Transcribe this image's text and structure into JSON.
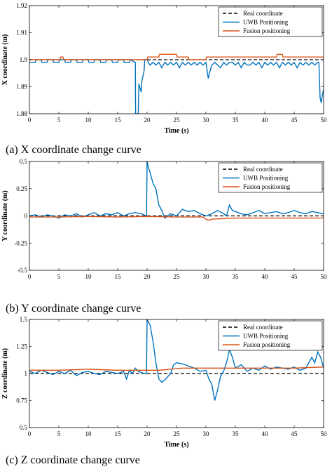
{
  "chart_data": [
    {
      "type": "line",
      "caption": "(a) X coordinate change curve",
      "xlabel": "Time (s)",
      "ylabel": "X coordinate (m)",
      "xlim": [
        0,
        50
      ],
      "ylim": [
        1.88,
        1.92
      ],
      "xticks": [
        "0",
        "5",
        "10",
        "15",
        "20",
        "25",
        "30",
        "35",
        "40",
        "45",
        "50"
      ],
      "yticks": [
        "1.88",
        "1.89",
        "1.9",
        "1.91",
        "1.92"
      ],
      "legend_position": "top-right",
      "series": [
        {
          "name": "Real coordinate",
          "color": "#000000",
          "dash": true,
          "x": [
            0,
            50
          ],
          "y": [
            1.9,
            1.9
          ]
        },
        {
          "name": "UWB Positioning",
          "color": "#0072BD",
          "x": [
            0,
            1,
            1.1,
            2,
            2.1,
            3,
            3.1,
            4,
            4.1,
            5,
            5.1,
            6,
            6.1,
            7,
            7.1,
            8,
            8.1,
            9,
            9.1,
            10,
            10.1,
            11,
            11.1,
            12,
            12.1,
            13,
            13.1,
            14,
            14.1,
            15,
            15.1,
            16,
            16.1,
            17,
            17.1,
            18,
            18.05,
            18.1,
            18.5,
            18.6,
            19.0,
            19.1,
            19.5,
            19.6,
            20,
            20.2,
            20.5,
            21,
            21.5,
            22,
            22.5,
            23,
            23.5,
            24,
            24.5,
            25,
            25.5,
            26,
            26.5,
            27,
            27.5,
            28,
            28.5,
            29,
            29.5,
            30,
            30.2,
            30.4,
            30.6,
            31,
            31.5,
            32,
            32.5,
            33,
            33.5,
            34,
            34.5,
            35,
            35.5,
            36,
            36.5,
            37,
            37.5,
            38,
            38.5,
            39,
            39.5,
            40,
            40.5,
            41,
            41.5,
            42,
            42.5,
            43,
            43.5,
            44,
            44.5,
            45,
            45.5,
            46,
            46.5,
            47,
            47.5,
            48,
            48.5,
            49,
            49.2,
            49.4,
            49.6,
            49.8,
            50
          ],
          "y": [
            1.899,
            1.899,
            1.9,
            1.9,
            1.899,
            1.899,
            1.9,
            1.9,
            1.899,
            1.899,
            1.9,
            1.9,
            1.899,
            1.899,
            1.9,
            1.9,
            1.899,
            1.899,
            1.9,
            1.9,
            1.899,
            1.899,
            1.9,
            1.9,
            1.899,
            1.899,
            1.9,
            1.9,
            1.899,
            1.899,
            1.9,
            1.9,
            1.899,
            1.899,
            1.9,
            1.899,
            1.88,
            1.88,
            1.88,
            1.891,
            1.888,
            1.892,
            1.896,
            1.9,
            1.9,
            1.899,
            1.898,
            1.899,
            1.898,
            1.899,
            1.897,
            1.899,
            1.898,
            1.899,
            1.898,
            1.899,
            1.897,
            1.899,
            1.898,
            1.899,
            1.898,
            1.899,
            1.898,
            1.899,
            1.898,
            1.899,
            1.896,
            1.893,
            1.895,
            1.898,
            1.899,
            1.898,
            1.897,
            1.899,
            1.898,
            1.899,
            1.899,
            1.898,
            1.899,
            1.897,
            1.899,
            1.898,
            1.898,
            1.899,
            1.898,
            1.899,
            1.897,
            1.899,
            1.898,
            1.899,
            1.898,
            1.899,
            1.897,
            1.899,
            1.898,
            1.899,
            1.898,
            1.899,
            1.897,
            1.899,
            1.898,
            1.899,
            1.898,
            1.899,
            1.898,
            1.899,
            1.899,
            1.886,
            1.884,
            1.887,
            1.889
          ]
        },
        {
          "name": "Fusion positioning",
          "color": "#D95319",
          "x": [
            0,
            5.2,
            5.3,
            5.7,
            5.8,
            20,
            20.1,
            22,
            22.1,
            25,
            25.1,
            27,
            27.1,
            30,
            30.1,
            42,
            42.1,
            43,
            43.1,
            50
          ],
          "y": [
            1.9,
            1.9,
            1.901,
            1.901,
            1.9,
            1.9,
            1.901,
            1.901,
            1.902,
            1.902,
            1.901,
            1.901,
            1.9,
            1.9,
            1.901,
            1.901,
            1.902,
            1.902,
            1.901,
            1.901
          ]
        }
      ]
    },
    {
      "type": "line",
      "caption": "(b) Y coordinate change curve",
      "xlabel": "",
      "ylabel": "Y coordinate (m)",
      "xlim": [
        0,
        50
      ],
      "ylim": [
        -0.5,
        0.5
      ],
      "xticks": [
        "0",
        "5",
        "10",
        "15",
        "20",
        "25",
        "30",
        "35",
        "40",
        "45",
        "50"
      ],
      "yticks": [
        "-0.5",
        "-0.25",
        "0",
        "0.25",
        "0.5"
      ],
      "legend_position": "top-right",
      "series": [
        {
          "name": "Real coordinate",
          "color": "#000000",
          "dash": true,
          "x": [
            0,
            50
          ],
          "y": [
            0,
            0
          ]
        },
        {
          "name": "UWB Positioning",
          "color": "#0072BD",
          "x": [
            0,
            1,
            2,
            3,
            4,
            5,
            6,
            7,
            8,
            9,
            10,
            11,
            12,
            13,
            14,
            15,
            16,
            17,
            18,
            19,
            19.9,
            20,
            20.2,
            20.5,
            21,
            21.5,
            22,
            22.5,
            23,
            23.5,
            24,
            25,
            26,
            27,
            28,
            29,
            30,
            31,
            32,
            33,
            33.5,
            34,
            34.5,
            35,
            36,
            37,
            38,
            39,
            40,
            41,
            42,
            43,
            44,
            45,
            46,
            47,
            48,
            49,
            50
          ],
          "y": [
            0,
            0.01,
            -0.01,
            0.01,
            0.0,
            -0.02,
            0.01,
            0.0,
            0.02,
            -0.01,
            0.01,
            0.03,
            0.0,
            0.02,
            0.01,
            0.03,
            0.0,
            0.02,
            0.03,
            0.02,
            0.0,
            0.5,
            0.45,
            0.4,
            0.3,
            0.25,
            0.1,
            0.05,
            -0.02,
            0.0,
            0.02,
            0.0,
            0.06,
            0.04,
            0.05,
            0.02,
            0.0,
            0.02,
            0.05,
            0.02,
            0.0,
            0.1,
            0.05,
            0.04,
            0.02,
            0.01,
            0.03,
            0.05,
            0.02,
            0.03,
            0.04,
            0.02,
            0.03,
            0.05,
            0.03,
            0.02,
            0.04,
            0.03,
            0.02
          ]
        },
        {
          "name": "Fusion positioning",
          "color": "#D95319",
          "x": [
            0,
            5,
            10,
            15,
            20,
            25,
            29.5,
            30,
            30.5,
            31,
            35,
            40,
            45,
            50
          ],
          "y": [
            -0.01,
            -0.01,
            -0.005,
            -0.01,
            -0.005,
            -0.01,
            -0.01,
            -0.03,
            -0.04,
            -0.03,
            -0.02,
            -0.02,
            -0.02,
            -0.02
          ]
        }
      ]
    },
    {
      "type": "line",
      "caption": "(c) Z coordinate change curve",
      "xlabel": "Time (s)",
      "ylabel": "Z coordinate (m)",
      "xlim": [
        0,
        50
      ],
      "ylim": [
        0.5,
        1.5
      ],
      "xticks": [
        "0",
        "5",
        "10",
        "15",
        "20",
        "25",
        "30",
        "35",
        "40",
        "45",
        "50"
      ],
      "yticks": [
        "0.5",
        "0.75",
        "1",
        "1.25",
        "1.5"
      ],
      "legend_position": "top-right",
      "series": [
        {
          "name": "Real coordinate",
          "color": "#000000",
          "dash": true,
          "x": [
            0,
            50
          ],
          "y": [
            1,
            1
          ]
        },
        {
          "name": "UWB Positioning",
          "color": "#0072BD",
          "x": [
            0,
            1,
            2,
            3,
            4,
            5,
            6,
            7,
            8,
            9,
            10,
            11,
            12,
            13,
            14,
            15,
            16,
            16.5,
            17,
            17.5,
            18,
            18.5,
            19,
            19.5,
            19.9,
            20,
            20.5,
            21,
            21.5,
            22,
            22.5,
            23,
            23.5,
            24,
            24.5,
            25,
            26,
            27,
            28,
            29,
            30,
            30.5,
            31,
            31.5,
            32,
            32.5,
            33,
            33.5,
            34,
            34.5,
            35,
            36,
            37,
            38,
            39,
            40,
            41,
            42,
            43,
            44,
            45,
            46,
            47,
            48,
            48.5,
            49,
            49.5,
            50
          ],
          "y": [
            1.02,
            1.0,
            1.03,
            1.01,
            0.99,
            1.02,
            1.0,
            1.03,
            0.98,
            1.01,
            1.02,
            1.0,
            0.99,
            1.02,
            1.01,
            1.0,
            1.02,
            0.95,
            1.03,
            1.0,
            1.05,
            1.02,
            1.01,
            1.0,
            1.0,
            1.5,
            1.45,
            1.3,
            1.1,
            0.95,
            0.92,
            0.94,
            0.97,
            1.0,
            1.08,
            1.1,
            1.09,
            1.07,
            1.05,
            1.02,
            1.03,
            0.95,
            0.9,
            0.75,
            0.85,
            0.98,
            1.02,
            1.1,
            1.22,
            1.15,
            1.05,
            1.08,
            1.02,
            1.05,
            1.03,
            1.07,
            1.04,
            1.06,
            1.05,
            1.04,
            1.06,
            1.03,
            1.05,
            1.15,
            1.1,
            1.2,
            1.15,
            1.05
          ]
        },
        {
          "name": "Fusion positioning",
          "color": "#D95319",
          "x": [
            0,
            5,
            10,
            15,
            20,
            22,
            24,
            26,
            30,
            35,
            40,
            45,
            50
          ],
          "y": [
            1.03,
            1.03,
            1.04,
            1.03,
            1.03,
            1.03,
            1.04,
            1.05,
            1.05,
            1.05,
            1.05,
            1.05,
            1.06
          ]
        }
      ]
    }
  ]
}
